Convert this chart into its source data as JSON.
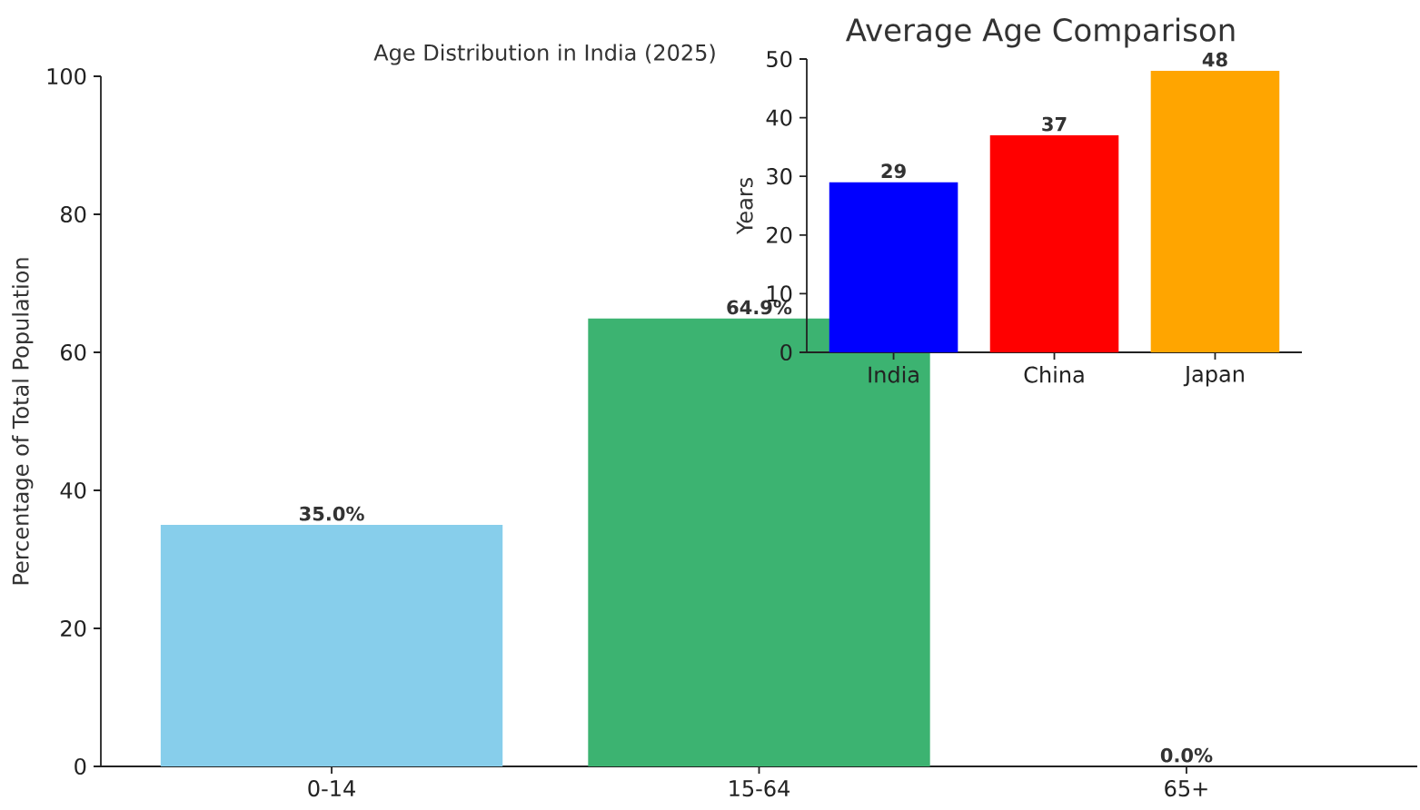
{
  "chart_data": [
    {
      "type": "bar",
      "title": "Age Distribution in India (2025)",
      "ylabel": "Percentage of Total Population",
      "categories": [
        "0-14",
        "15-64",
        "65+"
      ],
      "values": [
        35.0,
        64.9,
        0.0
      ],
      "colors": [
        "#87ceeb",
        "#3cb371",
        "#f08080"
      ],
      "value_labels": [
        "35.0%",
        "64.9%",
        "0.0%"
      ],
      "ylim": [
        0,
        100
      ],
      "yticks": [
        0,
        20,
        40,
        60,
        80,
        100
      ]
    },
    {
      "type": "bar",
      "title": "Average Age Comparison",
      "ylabel": "Years",
      "categories": [
        "India",
        "China",
        "Japan"
      ],
      "values": [
        29,
        37,
        48
      ],
      "colors": [
        "#0000ff",
        "#ff0000",
        "#ffa500"
      ],
      "value_labels": [
        "29",
        "37",
        "48"
      ],
      "ylim": [
        0,
        50
      ],
      "yticks": [
        0,
        10,
        20,
        30,
        40,
        50
      ]
    }
  ]
}
